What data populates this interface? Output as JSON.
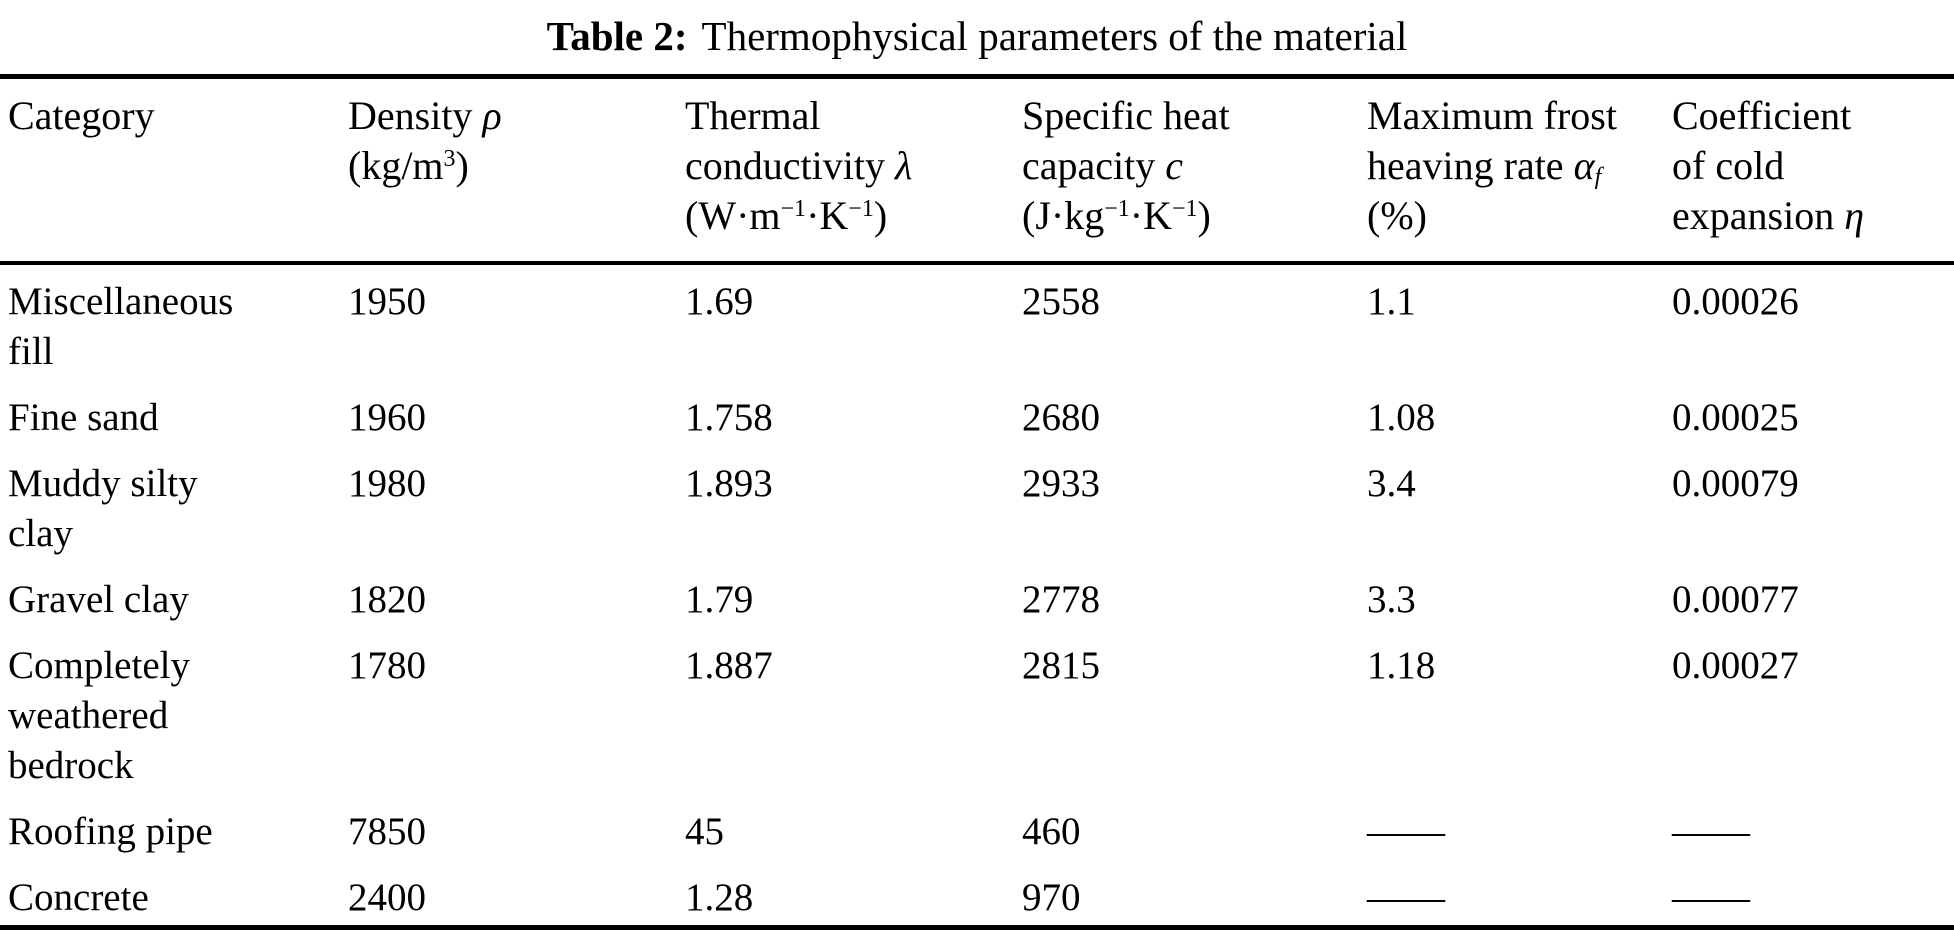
{
  "colors": {
    "text": "#000000",
    "background": "#ffffff",
    "rule": "#000000"
  },
  "caption": {
    "label": "Table 2:",
    "text": "Thermophysical parameters of the material"
  },
  "table": {
    "headers": [
      {
        "id": "category",
        "lines": [
          "Category"
        ]
      },
      {
        "id": "density",
        "lines": [
          "Density ~{ρ}",
          "(kg/m^{3})"
        ]
      },
      {
        "id": "thermal_conductivity",
        "lines": [
          "Thermal",
          "conductivity ~{λ}",
          "(W·m^{−1}·K^{−1})"
        ]
      },
      {
        "id": "specific_heat",
        "lines": [
          "Specific heat",
          "capacity ~{c}",
          "(J·kg^{−1}·K^{−1})"
        ]
      },
      {
        "id": "max_frost_heaving",
        "lines": [
          "Maximum frost",
          "heaving rate ~{α}_{~{f}}",
          "(%)"
        ]
      },
      {
        "id": "cold_expansion",
        "lines": [
          "Coefficient",
          "of cold",
          "expansion ~{η}"
        ]
      }
    ],
    "rows": [
      {
        "category_lines": [
          "Miscellaneous",
          "fill"
        ],
        "density": "1950",
        "thermal_conductivity": "1.69",
        "specific_heat": "2558",
        "frost_heaving": "1.1",
        "cold_expansion": "0.00026"
      },
      {
        "category_lines": [
          "Fine sand"
        ],
        "density": "1960",
        "thermal_conductivity": "1.758",
        "specific_heat": "2680",
        "frost_heaving": "1.08",
        "cold_expansion": "0.00025"
      },
      {
        "category_lines": [
          "Muddy silty",
          "clay"
        ],
        "density": "1980",
        "thermal_conductivity": "1.893",
        "specific_heat": "2933",
        "frost_heaving": "3.4",
        "cold_expansion": "0.00079"
      },
      {
        "category_lines": [
          "Gravel clay"
        ],
        "density": "1820",
        "thermal_conductivity": "1.79",
        "specific_heat": "2778",
        "frost_heaving": "3.3",
        "cold_expansion": "0.00077"
      },
      {
        "category_lines": [
          "Completely",
          "weathered",
          "bedrock"
        ],
        "density": "1780",
        "thermal_conductivity": "1.887",
        "specific_heat": "2815",
        "frost_heaving": "1.18",
        "cold_expansion": "0.00027"
      },
      {
        "category_lines": [
          "Roofing pipe"
        ],
        "density": "7850",
        "thermal_conductivity": "45",
        "specific_heat": "460",
        "frost_heaving": "——",
        "cold_expansion": "——"
      },
      {
        "category_lines": [
          "Concrete"
        ],
        "density": "2400",
        "thermal_conductivity": "1.28",
        "specific_heat": "970",
        "frost_heaving": "——",
        "cold_expansion": "——"
      }
    ]
  }
}
